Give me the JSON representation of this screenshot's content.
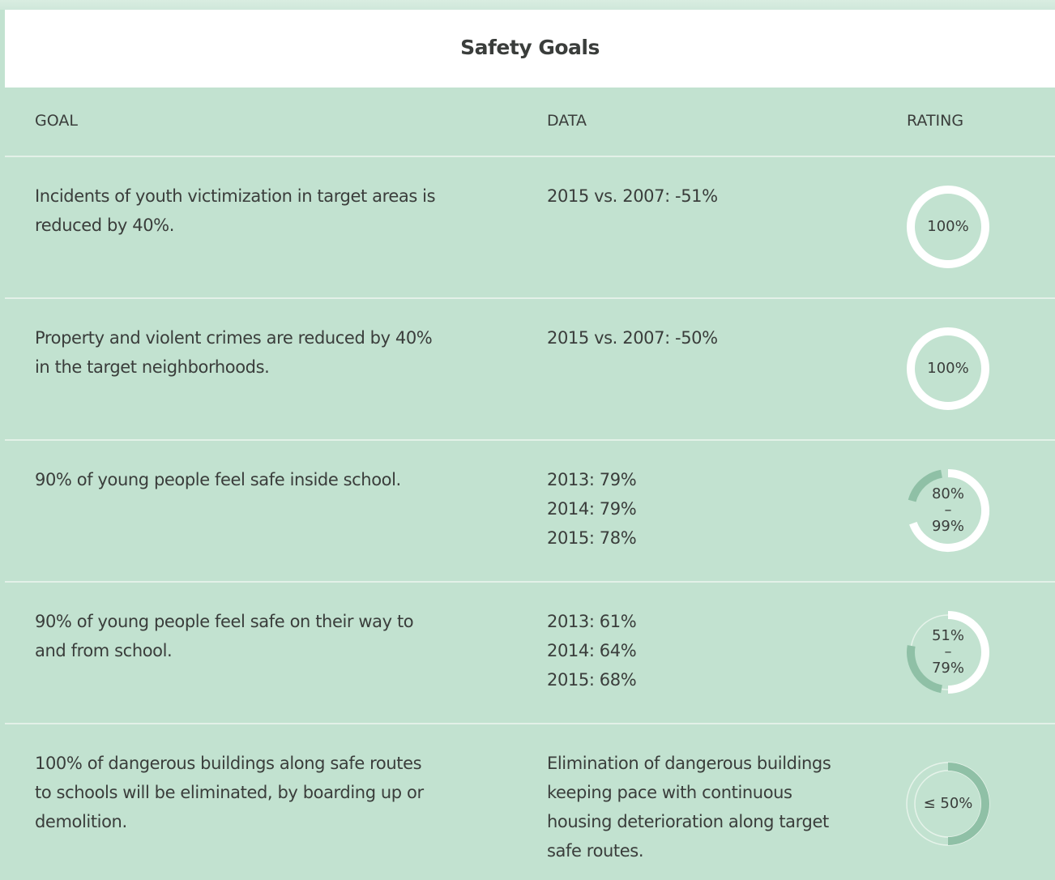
{
  "header": {
    "title": "Safety Goals"
  },
  "table": {
    "columns": [
      "GOAL",
      "DATA",
      "RATING"
    ],
    "rows": [
      {
        "goal": "Incidents of youth victimization in target areas is reduced by 40%.",
        "data": [
          "2015 vs. 2007: -51%"
        ],
        "rating": [
          "100%"
        ]
      },
      {
        "goal": "Property and violent crimes are reduced by 40% in the target neighborhoods.",
        "data": [
          "2015 vs. 2007: -50%"
        ],
        "rating": [
          "100%"
        ]
      },
      {
        "goal": "90% of young people feel safe inside school.",
        "data": [
          "2013: 79%",
          "2014: 79%",
          "2015: 78%"
        ],
        "rating": [
          "80%",
          "–",
          "99%"
        ]
      },
      {
        "goal": "90% of young people feel safe on their way to and from school.",
        "data": [
          "2013: 61%",
          "2014: 64%",
          "2015: 68%"
        ],
        "rating": [
          "51%",
          "–",
          "79%"
        ]
      },
      {
        "goal": "100% of dangerous buildings along safe routes to schools will be eliminated, by boarding up or demolition.",
        "data": [
          "Elimination of dangerous buildings keeping pace with continuous housing deterioration along target safe routes."
        ],
        "rating": [
          "≤ 50%"
        ]
      }
    ]
  }
}
